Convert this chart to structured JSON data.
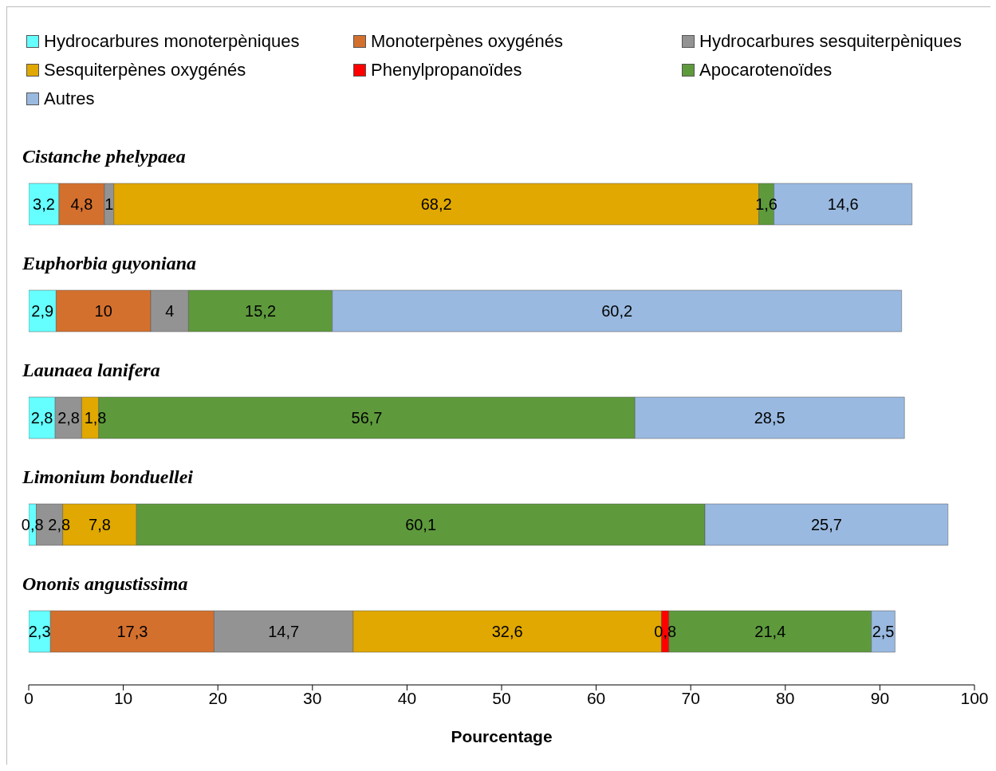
{
  "chart_data": {
    "type": "bar",
    "orientation": "horizontal",
    "stacked": true,
    "xlabel": "Pourcentage",
    "categories": [
      "Cistanche phelypaea",
      "Euphorbia guyoniana",
      "Launaea lanifera",
      "Limonium bonduellei",
      "Ononis angustissima"
    ],
    "series": [
      {
        "name": "Hydrocarbures monoterpèniques",
        "color": "#66ffff",
        "values": [
          3.2,
          2.9,
          2.8,
          0.8,
          2.3
        ],
        "value_labels": [
          "3,2",
          "2,9",
          "2,8",
          "0,8",
          "2,3"
        ]
      },
      {
        "name": "Monoterpènes oxygénés",
        "color": "#d4702e",
        "values": [
          4.8,
          10,
          null,
          null,
          17.3
        ],
        "value_labels": [
          "4,8",
          "10",
          null,
          null,
          "17,3"
        ]
      },
      {
        "name": "Hydrocarbures sesquiterpèniques",
        "color": "#939393",
        "values": [
          1,
          4,
          2.8,
          2.8,
          14.7
        ],
        "value_labels": [
          "1",
          "4",
          "2,8",
          "2,8",
          "14,7"
        ]
      },
      {
        "name": "Sesquiterpènes oxygénés",
        "color": "#e0a800",
        "values": [
          68.2,
          null,
          1.8,
          7.8,
          32.6
        ],
        "value_labels": [
          "68,2",
          null,
          "1,8",
          "7,8",
          "32,6"
        ]
      },
      {
        "name": "Phenylpropanoïdes",
        "color": "#ff0000",
        "values": [
          null,
          null,
          null,
          null,
          0.8
        ],
        "value_labels": [
          null,
          null,
          null,
          null,
          "0,8"
        ]
      },
      {
        "name": "Apocarotenoïdes",
        "color": "#5e9a3c",
        "values": [
          1.6,
          15.2,
          56.7,
          60.1,
          21.4
        ],
        "value_labels": [
          "1,6",
          "15,2",
          "56,7",
          "60,1",
          "21,4"
        ]
      },
      {
        "name": "Autres",
        "color": "#99b9e0",
        "values": [
          14.6,
          60.2,
          28.5,
          25.7,
          2.5
        ],
        "value_labels": [
          "14,6",
          "60,2",
          "28,5",
          "25,7",
          "2,5"
        ]
      }
    ],
    "xlim": [
      0,
      100
    ],
    "xticks": [
      0,
      10,
      20,
      30,
      40,
      50,
      60,
      70,
      80,
      90,
      100
    ],
    "grid": false,
    "legend": "top"
  }
}
